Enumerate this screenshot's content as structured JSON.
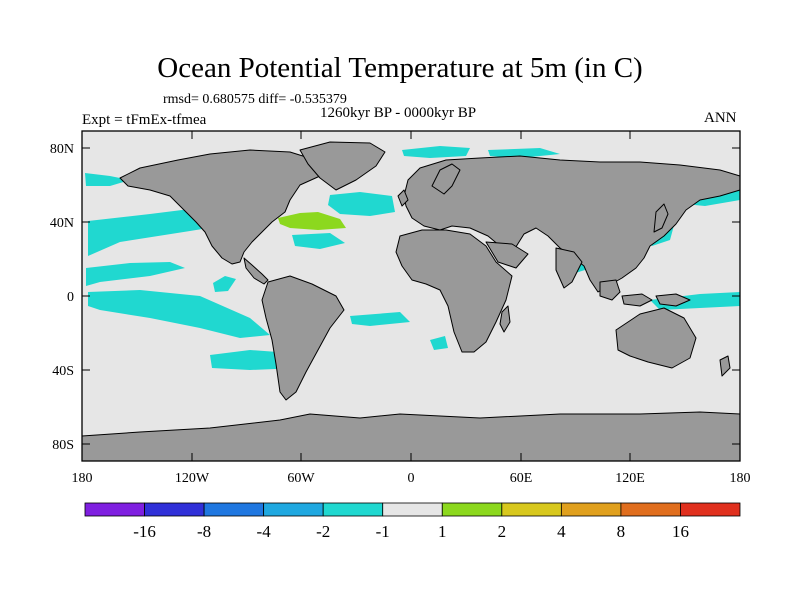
{
  "title": "Ocean Potential Temperature at 5m (in C)",
  "stats_line": "rmsd= 0.680575 diff= -0.535379",
  "period": "1260kyr BP - 0000kyr BP",
  "experiment": "Expt = tFmEx-tfmea",
  "season": "ANN",
  "y_ticks": [
    "80N",
    "40N",
    "0",
    "40S",
    "80S"
  ],
  "x_ticks": [
    "180",
    "120W",
    "60W",
    "0",
    "60E",
    "120E",
    "180"
  ],
  "colorbar": {
    "colors": [
      "#7f1fe0",
      "#3030d8",
      "#1f77e0",
      "#1fa8e0",
      "#20d8d0",
      "#e6e6e6",
      "#8cd81e",
      "#d8c81e",
      "#e0a01e",
      "#e06e1e",
      "#e0301e"
    ],
    "labels": [
      "-16",
      "-8",
      "-4",
      "-2",
      "-1",
      "1",
      "2",
      "4",
      "8",
      "16"
    ]
  },
  "map_colors": {
    "ocean": "#e6e6e6",
    "land": "#999999",
    "cool": "#20d8d0",
    "warm": "#8cd81e"
  }
}
